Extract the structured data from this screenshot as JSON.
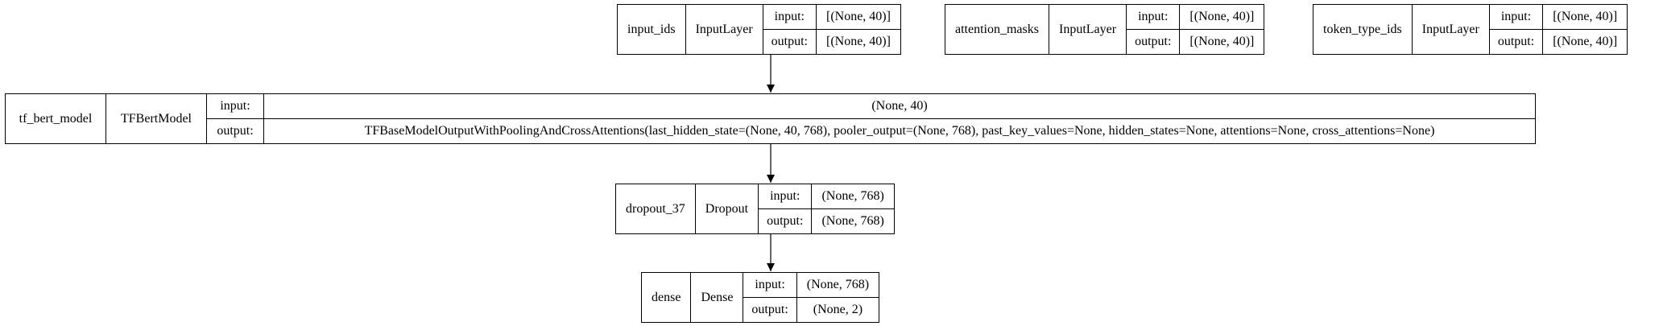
{
  "diagram": {
    "nodes": [
      {
        "id": "input_ids",
        "name": "input_ids",
        "class": "InputLayer",
        "input_label": "input:",
        "input_shape": "[(None, 40)]",
        "output_label": "output:",
        "output_shape": "[(None, 40)]"
      },
      {
        "id": "attention_masks",
        "name": "attention_masks",
        "class": "InputLayer",
        "input_label": "input:",
        "input_shape": "[(None, 40)]",
        "output_label": "output:",
        "output_shape": "[(None, 40)]"
      },
      {
        "id": "token_type_ids",
        "name": "token_type_ids",
        "class": "InputLayer",
        "input_label": "input:",
        "input_shape": "[(None, 40)]",
        "output_label": "output:",
        "output_shape": "[(None, 40)]"
      },
      {
        "id": "tf_bert_model",
        "name": "tf_bert_model",
        "class": "TFBertModel",
        "input_label": "input:",
        "input_shape": "(None, 40)",
        "output_label": "output:",
        "output_shape": "TFBaseModelOutputWithPoolingAndCrossAttentions(last_hidden_state=(None, 40, 768), pooler_output=(None, 768), past_key_values=None, hidden_states=None, attentions=None, cross_attentions=None)"
      },
      {
        "id": "dropout_37",
        "name": "dropout_37",
        "class": "Dropout",
        "input_label": "input:",
        "input_shape": "(None, 768)",
        "output_label": "output:",
        "output_shape": "(None, 768)"
      },
      {
        "id": "dense",
        "name": "dense",
        "class": "Dense",
        "input_label": "input:",
        "input_shape": "(None, 768)",
        "output_label": "output:",
        "output_shape": "(None, 2)"
      }
    ],
    "edges": [
      {
        "from": "input_ids",
        "to": "tf_bert_model"
      },
      {
        "from": "tf_bert_model",
        "to": "dropout_37"
      },
      {
        "from": "dropout_37",
        "to": "dense"
      }
    ]
  }
}
